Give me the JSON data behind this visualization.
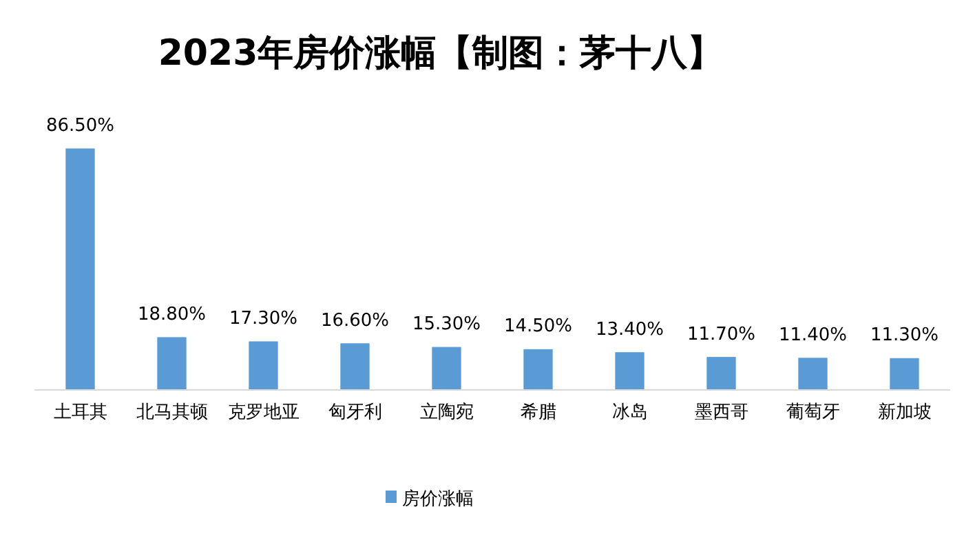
{
  "chart_data": {
    "type": "bar",
    "title": "2023年房价涨幅【制图：茅十八】",
    "categories": [
      "土耳其",
      "北马其顿",
      "克罗地亚",
      "匈牙利",
      "立陶宛",
      "希腊",
      "冰岛",
      "墨西哥",
      "葡萄牙",
      "新加坡"
    ],
    "series": [
      {
        "name": "房价涨幅",
        "color": "#5b9bd5",
        "values": [
          86.5,
          18.8,
          17.3,
          16.6,
          15.3,
          14.5,
          13.4,
          11.7,
          11.4,
          11.3
        ],
        "value_labels": [
          "86.50%",
          "18.80%",
          "17.30%",
          "16.60%",
          "15.30%",
          "14.50%",
          "13.40%",
          "11.70%",
          "11.40%",
          "11.30%"
        ]
      }
    ],
    "legend": "bottom"
  }
}
